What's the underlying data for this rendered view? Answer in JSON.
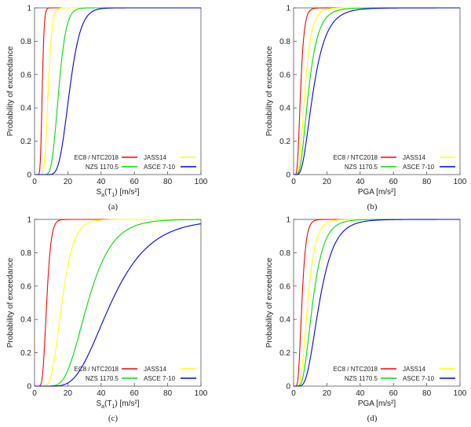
{
  "chart_data": [
    {
      "type": "line",
      "caption": "(a)",
      "xlabel_main": "S",
      "xlabel_sub": "a",
      "xlabel_rest": "(T",
      "xlabel_sub2": "1",
      "xlabel_unit": ") [m/s²]",
      "ylabel": "Probability of exceedance",
      "xlim": [
        0,
        100
      ],
      "ylim": [
        0,
        1
      ],
      "xticks": [
        "0",
        "20",
        "40",
        "60",
        "80",
        "100"
      ],
      "yticks": [
        "0",
        "0.2",
        "0.4",
        "0.6",
        "0.8",
        "1"
      ],
      "series": [
        {
          "name": "EC8 / NTC2018",
          "color": "#ff0000",
          "median": 4.6,
          "beta": 0.2
        },
        {
          "name": "JASS14",
          "color": "#ffff00",
          "median": 8.2,
          "beta": 0.22
        },
        {
          "name": "NZS 1170.5",
          "color": "#00dd00",
          "median": 14.5,
          "beta": 0.24
        },
        {
          "name": "ASCE 7-10",
          "color": "#0000ee",
          "median": 21.0,
          "beta": 0.25
        }
      ]
    },
    {
      "type": "line",
      "caption": "(b)",
      "xlabel_main": "PGA [m/s²]",
      "ylabel": "Probability of exceedance",
      "xlim": [
        0,
        100
      ],
      "ylim": [
        0,
        1
      ],
      "xticks": [
        "0",
        "20",
        "40",
        "60",
        "80",
        "100"
      ],
      "yticks": [
        "0",
        "0.2",
        "0.4",
        "0.6",
        "0.8",
        "1"
      ],
      "series": [
        {
          "name": "EC8 / NTC2018",
          "color": "#ff0000",
          "median": 4.2,
          "beta": 0.4
        },
        {
          "name": "JASS14",
          "color": "#ffff00",
          "median": 6.8,
          "beta": 0.45
        },
        {
          "name": "NZS 1170.5",
          "color": "#00dd00",
          "median": 9.0,
          "beta": 0.5
        },
        {
          "name": "ASCE 7-10",
          "color": "#0000ee",
          "median": 11.8,
          "beta": 0.52
        }
      ]
    },
    {
      "type": "line",
      "caption": "(c)",
      "xlabel_main": "S",
      "xlabel_sub": "a",
      "xlabel_rest": "(T",
      "xlabel_sub2": "1",
      "xlabel_unit": ") [m/s²]",
      "ylabel": "Probability of exceedance",
      "xlim": [
        0,
        100
      ],
      "ylim": [
        0,
        1
      ],
      "xticks": [
        "0",
        "20",
        "40",
        "60",
        "80",
        "100"
      ],
      "yticks": [
        "0",
        "0.2",
        "0.4",
        "0.6",
        "0.8",
        "1"
      ],
      "series": [
        {
          "name": "EC8 / NTC2018",
          "color": "#ff0000",
          "median": 7.3,
          "beta": 0.28
        },
        {
          "name": "JASS14",
          "color": "#ffff00",
          "median": 16.5,
          "beta": 0.33
        },
        {
          "name": "NZS 1170.5",
          "color": "#00dd00",
          "median": 32.0,
          "beta": 0.36
        },
        {
          "name": "ASCE 7-10",
          "color": "#0000ee",
          "median": 46.0,
          "beta": 0.4
        }
      ]
    },
    {
      "type": "line",
      "caption": "(d)",
      "xlabel_main": "PGA [m/s²]",
      "ylabel": "Probability of exceedance",
      "xlim": [
        0,
        100
      ],
      "ylim": [
        0,
        1
      ],
      "xticks": [
        "0",
        "20",
        "40",
        "60",
        "80",
        "100"
      ],
      "yticks": [
        "0",
        "0.2",
        "0.4",
        "0.6",
        "0.8",
        "1"
      ],
      "series": [
        {
          "name": "EC8 / NTC2018",
          "color": "#ff0000",
          "median": 5.0,
          "beta": 0.38
        },
        {
          "name": "JASS14",
          "color": "#ffff00",
          "median": 8.5,
          "beta": 0.42
        },
        {
          "name": "NZS 1170.5",
          "color": "#00dd00",
          "median": 11.5,
          "beta": 0.45
        },
        {
          "name": "ASCE 7-10",
          "color": "#0000ee",
          "median": 15.5,
          "beta": 0.45
        }
      ]
    }
  ]
}
